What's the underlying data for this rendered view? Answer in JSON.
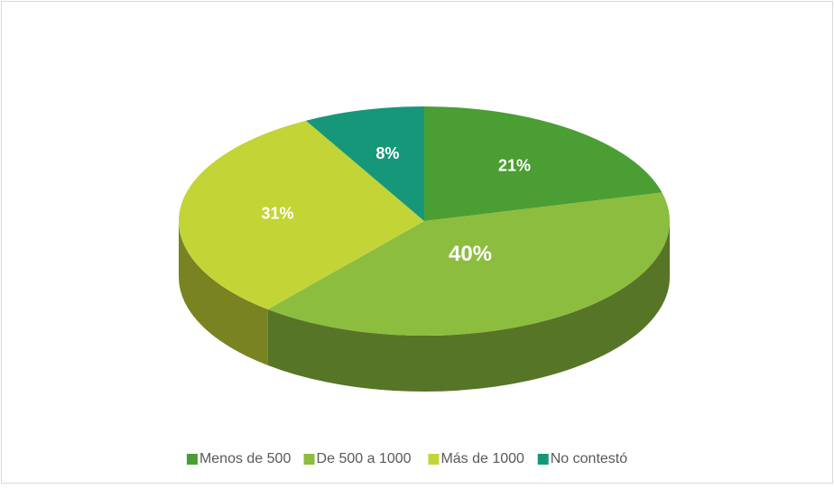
{
  "chart_data": {
    "type": "pie",
    "categories": [
      "Menos de 500",
      "De 500 a 1000",
      "Más de 1000",
      "No contestó"
    ],
    "values": [
      21,
      40,
      31,
      8
    ],
    "value_labels": [
      "21%",
      "40%",
      "31%",
      "8%"
    ],
    "colors": [
      "#4b9e33",
      "#8cbd3f",
      "#c3d437",
      "#16977a"
    ],
    "legend": "bottom"
  }
}
